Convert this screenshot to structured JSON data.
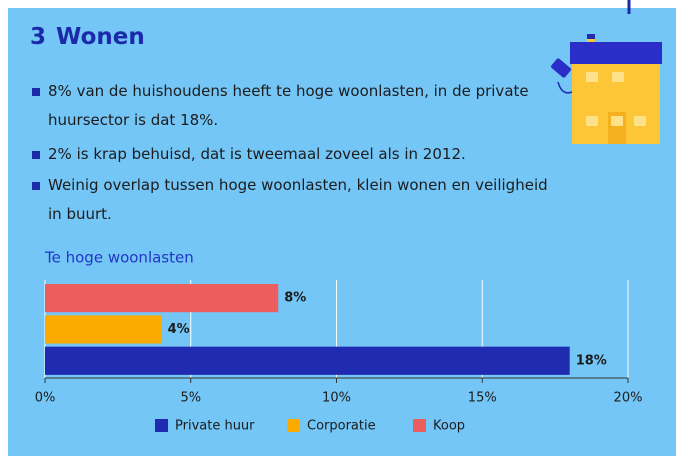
{
  "header": {
    "number": "3",
    "title": "Wonen"
  },
  "bullets": [
    "8% van de huishoudens heeft te hoge woonlasten, in de private huursector is dat 18%.",
    "2% is krap behuisd, dat is tweemaal zoveel als in 2012.",
    "Weinig overlap tussen hoge woonlasten, klein wonen en veiligheid in buurt."
  ],
  "chart_data": {
    "type": "bar",
    "orientation": "horizontal",
    "title": "Te hoge woonlasten",
    "categories": [
      null
    ],
    "series": [
      {
        "name": "Private huur",
        "color": "#1f2bb0",
        "values": [
          18
        ],
        "value_labels": [
          "18%"
        ]
      },
      {
        "name": "Corporatie",
        "color": "#fbaa00",
        "values": [
          4
        ],
        "value_labels": [
          "4%"
        ]
      },
      {
        "name": "Koop",
        "color": "#ec5d5d",
        "values": [
          8
        ],
        "value_labels": [
          "8%"
        ]
      }
    ],
    "xlim": [
      0,
      20
    ],
    "xticks": [
      {
        "value": 0,
        "label": "0%"
      },
      {
        "value": 5,
        "label": "5%"
      },
      {
        "value": 10,
        "label": "10%"
      },
      {
        "value": 15,
        "label": "15%"
      },
      {
        "value": 20,
        "label": "20%"
      }
    ],
    "grid": true,
    "legend": "bottom"
  }
}
